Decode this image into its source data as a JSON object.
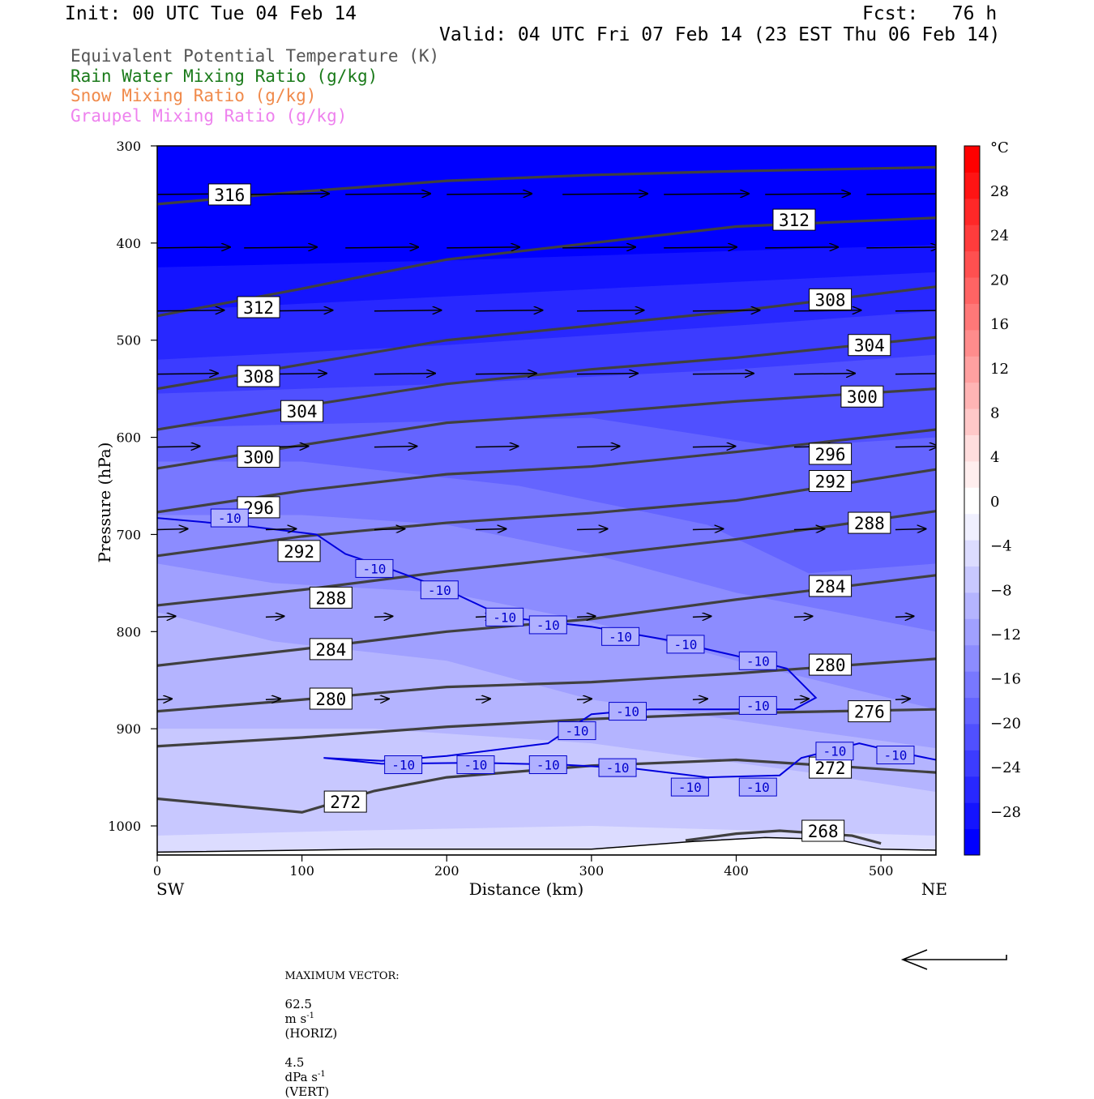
{
  "header": {
    "init": "Init: 00 UTC Tue 04 Feb 14",
    "fcst": "Fcst:   76 h",
    "valid": "Valid: 04 UTC Fri 07 Feb 14 (23 EST Thu 06 Feb 14)"
  },
  "fields": [
    {
      "label": "Equivalent Potential Temperature (K)",
      "color": "#555555"
    },
    {
      "label": "Rain Water Mixing Ratio (g/kg)",
      "color": "#1a7a1a"
    },
    {
      "label": "Snow Mixing Ratio (g/kg)",
      "color": "#f08a4b"
    },
    {
      "label": "Graupel Mixing Ratio (g/kg)",
      "color": "#ee82ee"
    }
  ],
  "footer": {
    "max_vector_label": "MAXIMUM VECTOR:",
    "horiz_value": "62.5",
    "horiz_unit": "m s",
    "horiz_exp": "-1",
    "horiz_tag": "(HORIZ)",
    "vert_value": "4.5",
    "vert_unit": "dPa s",
    "vert_exp": "-1",
    "vert_tag": "(VERT)"
  },
  "chart_data": {
    "type": "cross-section contour",
    "xlabel": "Distance (km)",
    "ylabel": "Pressure (hPa)",
    "x_ticks": [
      0,
      100,
      200,
      300,
      400,
      500
    ],
    "xlim": [
      0,
      538
    ],
    "y_ticks": [
      300,
      400,
      500,
      600,
      700,
      800,
      900,
      1000
    ],
    "ylim": [
      300,
      1030
    ],
    "y_scale": "linear, pressure increasing downward",
    "x_left_label": "SW",
    "x_right_label": "NE",
    "colorbar": {
      "unit": "°C",
      "labels": [
        28,
        24,
        20,
        16,
        12,
        8,
        4,
        0,
        -4,
        -8,
        -12,
        -16,
        -20,
        -24,
        -28
      ],
      "colors_bottom_to_top": [
        "#0000ff",
        "#1414ff",
        "#2828ff",
        "#3c3cff",
        "#5050ff",
        "#6464ff",
        "#7878ff",
        "#8c8cff",
        "#a0a0ff",
        "#b4b4ff",
        "#c8c8ff",
        "#dcdcff",
        "#f0f0ff",
        "#ffffff",
        "#ffeeee",
        "#ffdddd",
        "#ffc8c8",
        "#ffb4b4",
        "#ffa0a0",
        "#ff8c8c",
        "#ff7878",
        "#ff6464",
        "#ff5050",
        "#ff3c3c",
        "#ff2828",
        "#ff1414",
        "#ff0000"
      ]
    },
    "theta_e_contours": [
      {
        "value": 316,
        "points": [
          [
            0,
            360
          ],
          [
            100,
            347
          ],
          [
            200,
            336
          ],
          [
            300,
            330
          ],
          [
            400,
            326
          ],
          [
            538,
            322
          ]
        ]
      },
      {
        "value": 312,
        "points": [
          [
            0,
            475
          ],
          [
            100,
            447
          ],
          [
            200,
            417
          ],
          [
            300,
            400
          ],
          [
            400,
            383
          ],
          [
            538,
            374
          ]
        ]
      },
      {
        "value": 308,
        "points": [
          [
            0,
            550
          ],
          [
            100,
            525
          ],
          [
            200,
            500
          ],
          [
            300,
            485
          ],
          [
            400,
            470
          ],
          [
            538,
            445
          ]
        ]
      },
      {
        "value": 304,
        "points": [
          [
            0,
            592
          ],
          [
            100,
            568
          ],
          [
            200,
            545
          ],
          [
            300,
            530
          ],
          [
            400,
            518
          ],
          [
            538,
            497
          ]
        ]
      },
      {
        "value": 300,
        "points": [
          [
            0,
            632
          ],
          [
            100,
            608
          ],
          [
            200,
            585
          ],
          [
            300,
            575
          ],
          [
            400,
            563
          ],
          [
            538,
            550
          ]
        ]
      },
      {
        "value": 296,
        "points": [
          [
            0,
            677
          ],
          [
            100,
            655
          ],
          [
            200,
            638
          ],
          [
            300,
            630
          ],
          [
            400,
            615
          ],
          [
            538,
            592
          ]
        ]
      },
      {
        "value": 292,
        "points": [
          [
            0,
            722
          ],
          [
            100,
            702
          ],
          [
            200,
            688
          ],
          [
            300,
            678
          ],
          [
            400,
            665
          ],
          [
            538,
            633
          ]
        ]
      },
      {
        "value": 288,
        "points": [
          [
            0,
            773
          ],
          [
            100,
            757
          ],
          [
            200,
            738
          ],
          [
            300,
            722
          ],
          [
            400,
            705
          ],
          [
            538,
            676
          ]
        ]
      },
      {
        "value": 284,
        "points": [
          [
            0,
            835
          ],
          [
            100,
            818
          ],
          [
            200,
            800
          ],
          [
            300,
            787
          ],
          [
            400,
            767
          ],
          [
            538,
            742
          ]
        ]
      },
      {
        "value": 280,
        "points": [
          [
            0,
            882
          ],
          [
            100,
            870
          ],
          [
            200,
            857
          ],
          [
            300,
            852
          ],
          [
            400,
            843
          ],
          [
            538,
            828
          ]
        ]
      },
      {
        "value": 276,
        "points": [
          [
            0,
            918
          ],
          [
            100,
            909
          ],
          [
            200,
            898
          ],
          [
            300,
            890
          ],
          [
            400,
            884
          ],
          [
            538,
            880
          ]
        ]
      },
      {
        "value": 272,
        "points": [
          [
            0,
            972
          ],
          [
            100,
            986
          ],
          [
            150,
            964
          ],
          [
            200,
            950
          ],
          [
            300,
            938
          ],
          [
            400,
            932
          ],
          [
            538,
            945
          ]
        ]
      },
      {
        "value": 268,
        "points": [
          [
            365,
            1015
          ],
          [
            400,
            1008
          ],
          [
            430,
            1005
          ],
          [
            480,
            1010
          ],
          [
            500,
            1018
          ]
        ]
      }
    ],
    "isotherm_minus10": {
      "value": -10,
      "paths": [
        [
          [
            0,
            683
          ],
          [
            60,
            691
          ],
          [
            110,
            700
          ],
          [
            130,
            720
          ],
          [
            160,
            735
          ],
          [
            200,
            757
          ],
          [
            240,
            785
          ],
          [
            300,
            795
          ],
          [
            350,
            808
          ],
          [
            400,
            825
          ],
          [
            435,
            838
          ],
          [
            455,
            868
          ],
          [
            440,
            880
          ],
          [
            400,
            880
          ],
          [
            340,
            880
          ],
          [
            300,
            885
          ],
          [
            270,
            915
          ],
          [
            200,
            928
          ],
          [
            155,
            933
          ],
          [
            115,
            930
          ],
          [
            155,
            936
          ],
          [
            220,
            935
          ],
          [
            280,
            937
          ],
          [
            330,
            941
          ],
          [
            380,
            950
          ],
          [
            430,
            948
          ],
          [
            445,
            930
          ],
          [
            485,
            915
          ],
          [
            505,
            922
          ],
          [
            538,
            932
          ]
        ]
      ]
    },
    "wind_vectors": "horizontal arrows, strongest near 350 hPa, weakening toward surface"
  }
}
